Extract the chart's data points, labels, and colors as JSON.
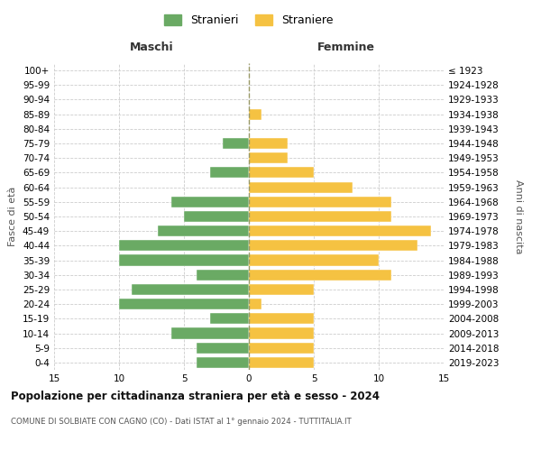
{
  "age_groups": [
    "0-4",
    "5-9",
    "10-14",
    "15-19",
    "20-24",
    "25-29",
    "30-34",
    "35-39",
    "40-44",
    "45-49",
    "50-54",
    "55-59",
    "60-64",
    "65-69",
    "70-74",
    "75-79",
    "80-84",
    "85-89",
    "90-94",
    "95-99",
    "100+"
  ],
  "birth_years": [
    "2019-2023",
    "2014-2018",
    "2009-2013",
    "2004-2008",
    "1999-2003",
    "1994-1998",
    "1989-1993",
    "1984-1988",
    "1979-1983",
    "1974-1978",
    "1969-1973",
    "1964-1968",
    "1959-1963",
    "1954-1958",
    "1949-1953",
    "1944-1948",
    "1939-1943",
    "1934-1938",
    "1929-1933",
    "1924-1928",
    "≤ 1923"
  ],
  "maschi": [
    4,
    4,
    6,
    3,
    10,
    9,
    4,
    10,
    10,
    7,
    5,
    6,
    0,
    3,
    0,
    2,
    0,
    0,
    0,
    0,
    0
  ],
  "femmine": [
    5,
    5,
    5,
    5,
    1,
    5,
    11,
    10,
    13,
    14,
    11,
    11,
    8,
    5,
    3,
    3,
    0,
    1,
    0,
    0,
    0
  ],
  "male_color": "#6aaa64",
  "female_color": "#f5c242",
  "title": "Popolazione per cittadinanza straniera per età e sesso - 2024",
  "subtitle": "COMUNE DI SOLBIATE CON CAGNO (CO) - Dati ISTAT al 1° gennaio 2024 - TUTTITALIA.IT",
  "xlabel_left": "Maschi",
  "xlabel_right": "Femmine",
  "ylabel_left": "Fasce di età",
  "ylabel_right": "Anni di nascita",
  "legend_male": "Stranieri",
  "legend_female": "Straniere",
  "xlim": 15,
  "background_color": "#ffffff",
  "grid_color": "#cccccc"
}
